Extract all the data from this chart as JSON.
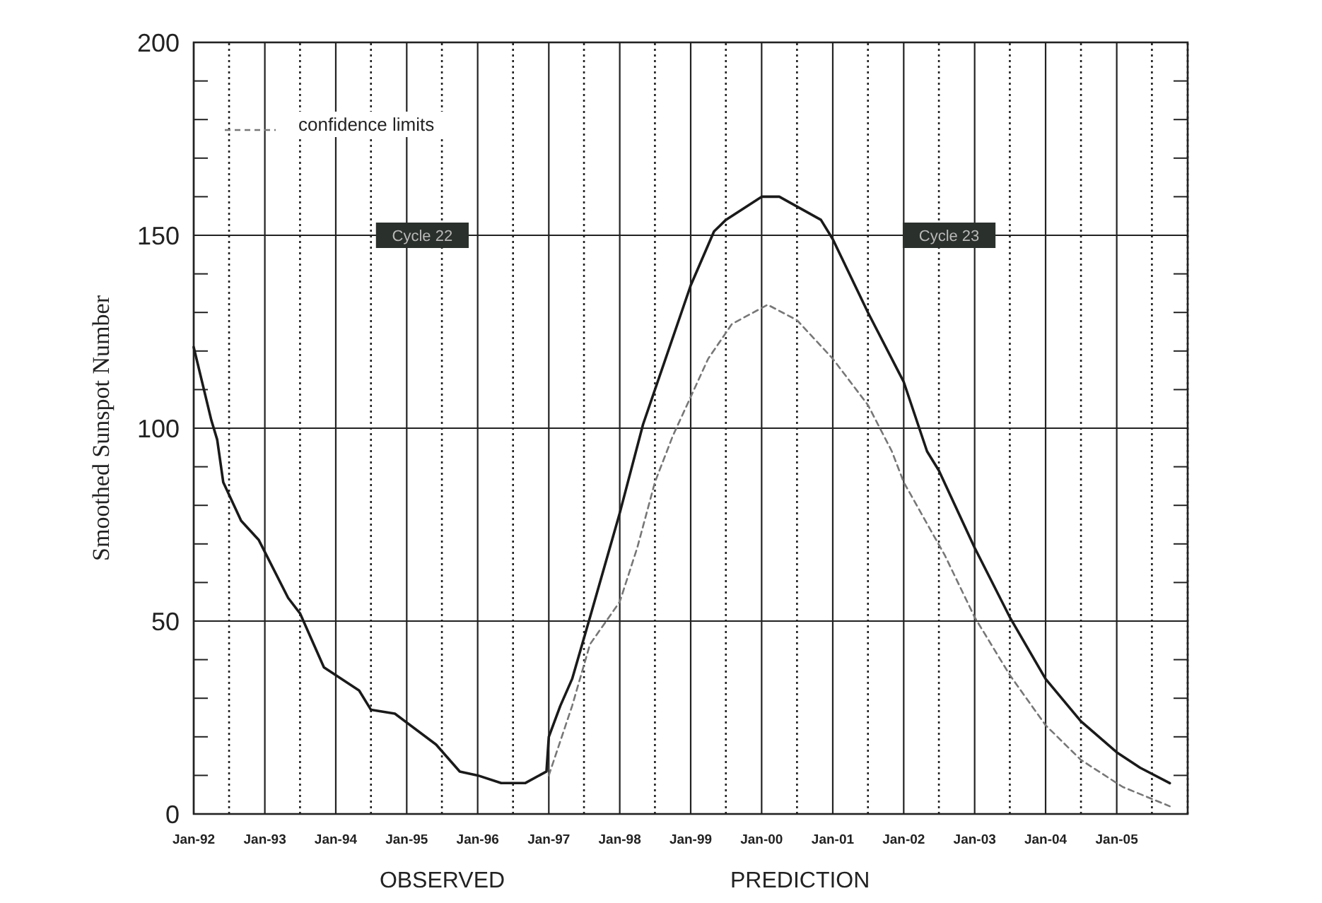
{
  "chart_data": {
    "type": "line",
    "ylabel": "Smoothed Sunspot Number",
    "xlim": [
      "1992-01",
      "2006-01"
    ],
    "xticks": [
      {
        "value": "1992-01",
        "label": "Jan-92"
      },
      {
        "value": "1992-07",
        "label": null
      },
      {
        "value": "1993-01",
        "label": "Jan-93"
      },
      {
        "value": "1993-07",
        "label": null
      },
      {
        "value": "1994-01",
        "label": "Jan-94"
      },
      {
        "value": "1994-07",
        "label": null
      },
      {
        "value": "1995-01",
        "label": "Jan-95"
      },
      {
        "value": "1995-07",
        "label": null
      },
      {
        "value": "1996-01",
        "label": "Jan-96"
      },
      {
        "value": "1996-07",
        "label": null
      },
      {
        "value": "1997-01",
        "label": "Jan-97"
      },
      {
        "value": "1997-07",
        "label": null
      },
      {
        "value": "1998-01",
        "label": "Jan-98"
      },
      {
        "value": "1998-07",
        "label": null
      },
      {
        "value": "1999-01",
        "label": "Jan-99"
      },
      {
        "value": "1999-07",
        "label": null
      },
      {
        "value": "2000-01",
        "label": "Jan-00"
      },
      {
        "value": "2000-07",
        "label": null
      },
      {
        "value": "2001-01",
        "label": "Jan-01"
      },
      {
        "value": "2001-07",
        "label": null
      },
      {
        "value": "2002-01",
        "label": "Jan-02"
      },
      {
        "value": "2002-07",
        "label": null
      },
      {
        "value": "2003-01",
        "label": "Jan-03"
      },
      {
        "value": "2003-07",
        "label": null
      },
      {
        "value": "2004-01",
        "label": "Jan-04"
      },
      {
        "value": "2004-07",
        "label": null
      },
      {
        "value": "2005-01",
        "label": "Jan-05"
      },
      {
        "value": "2005-07",
        "label": null
      },
      {
        "value": "2006-01",
        "label": null
      }
    ],
    "ylim": [
      0,
      200
    ],
    "yticks": [
      0,
      {
        "value": 10,
        "label": null
      },
      {
        "value": 20,
        "label": null
      },
      {
        "value": 30,
        "label": null
      },
      {
        "value": 40,
        "label": null
      },
      50,
      {
        "value": 60,
        "label": null
      },
      {
        "value": 70,
        "label": null
      },
      {
        "value": 80,
        "label": null
      },
      {
        "value": 90,
        "label": null
      },
      100,
      {
        "value": 110,
        "label": null
      },
      {
        "value": 120,
        "label": null
      },
      {
        "value": 130,
        "label": null
      },
      {
        "value": 140,
        "label": null
      },
      150,
      {
        "value": 160,
        "label": null
      },
      {
        "value": 170,
        "label": null
      },
      {
        "value": 180,
        "label": null
      },
      {
        "value": 190,
        "label": null
      },
      200
    ],
    "grid": true,
    "legend": "top left",
    "marker": "none",
    "series": [
      {
        "color": "#1a1a1a",
        "line_style": "solid",
        "x": [
          "1992-01",
          "1992-04",
          "1992-05",
          "1992-06",
          "1992-09",
          "1992-12",
          "1993-05",
          "1993-07",
          "1993-11",
          "1994-05",
          "1994-07",
          "1994-11",
          "1995-06",
          "1995-10",
          "1996-01",
          "1996-05",
          "1996-09",
          "1996-12-20",
          "1997-01",
          "1997-03",
          "1997-05",
          "1997-08",
          "1998-01",
          "1998-05",
          "1999-01",
          "1999-05",
          "1999-07",
          "2000-01",
          "2000-04",
          "2000-11",
          "2001-01",
          "2001-07",
          "2002-01",
          "2002-05",
          "2002-07",
          "2003-01",
          "2003-07",
          "2004-01",
          "2004-07",
          "2005-01",
          "2005-05",
          "2005-10"
        ],
        "values": [
          121,
          102,
          97,
          86,
          76,
          71,
          56,
          52,
          38,
          32,
          27,
          26,
          18,
          11,
          10,
          8,
          8,
          11,
          20,
          28,
          35,
          51,
          78,
          101,
          137,
          151,
          154,
          160,
          160,
          154,
          149,
          130,
          112,
          94,
          89,
          69,
          51,
          35,
          24,
          16,
          12,
          8
        ]
      },
      {
        "name": "confidence limits",
        "color": "#777777",
        "line_style": "dashed",
        "x": [
          "1997-01",
          "1997-05",
          "1997-08",
          "1998-01",
          "1998-04",
          "1998-07",
          "1998-10",
          "1999-04",
          "1999-08",
          "2000-02",
          "2000-07",
          "2001-01",
          "2001-07",
          "2001-11",
          "2002-01",
          "2002-08",
          "2003-01",
          "2003-07",
          "2004-01",
          "2004-07",
          "2005-02",
          "2005-10"
        ],
        "values": [
          10,
          28,
          44,
          55,
          69,
          86,
          98,
          118,
          127,
          132,
          128,
          118,
          106,
          94,
          86,
          67,
          51,
          36,
          23,
          14,
          7,
          2
        ]
      }
    ],
    "annotations": [
      "Cycle 22",
      "Cycle 23",
      "OBSERVED",
      "PREDICTION"
    ]
  }
}
